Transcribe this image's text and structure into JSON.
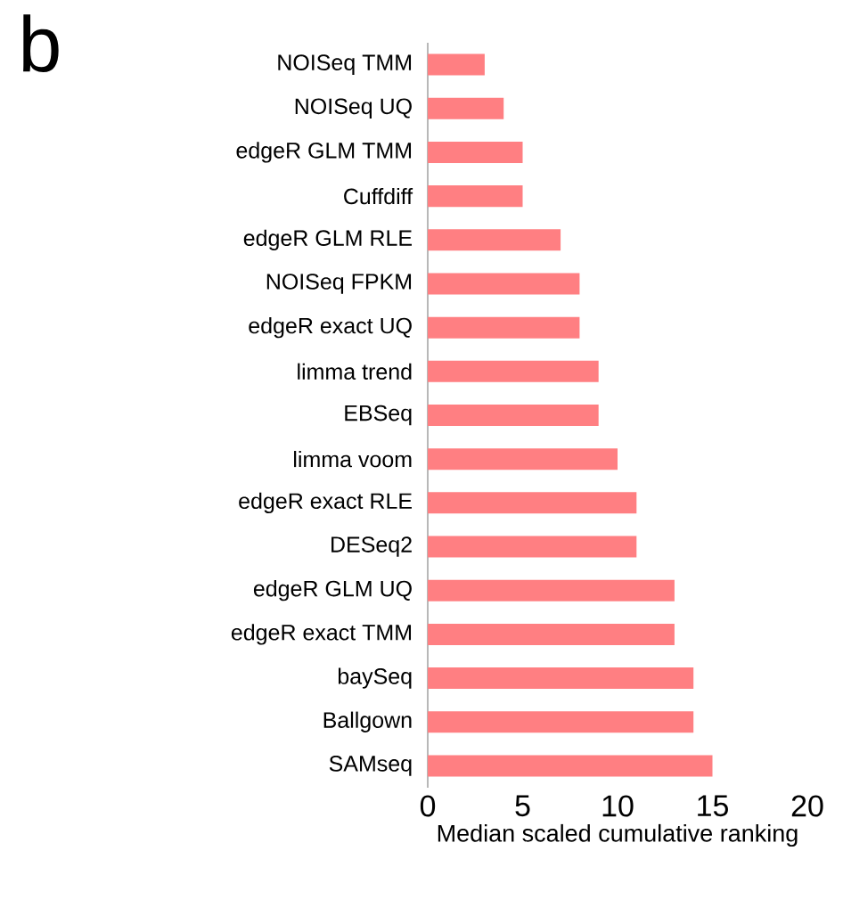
{
  "chart_data": {
    "type": "bar",
    "orientation": "horizontal",
    "xlabel": "Median scaled cumulative ranking",
    "annotations": [
      "b"
    ],
    "categories": [
      "NOISeq TMM",
      "NOISeq UQ",
      "edgeR GLM TMM",
      "Cuffdiff",
      "edgeR GLM RLE",
      "NOISeq FPKM",
      "edgeR exact UQ",
      "limma trend",
      "EBSeq",
      "limma voom",
      "edgeR exact RLE",
      "DESeq2",
      "edgeR GLM UQ",
      "edgeR exact TMM",
      "baySeq",
      "Ballgown",
      "SAMseq"
    ],
    "values": [
      3,
      4,
      5,
      5,
      7,
      8,
      8,
      9,
      9,
      10,
      11,
      11,
      13,
      13,
      14,
      14,
      15
    ],
    "color": "#ff7f82",
    "xlim": [
      0,
      20
    ],
    "xticks": [
      0,
      5,
      10,
      15,
      20
    ]
  }
}
